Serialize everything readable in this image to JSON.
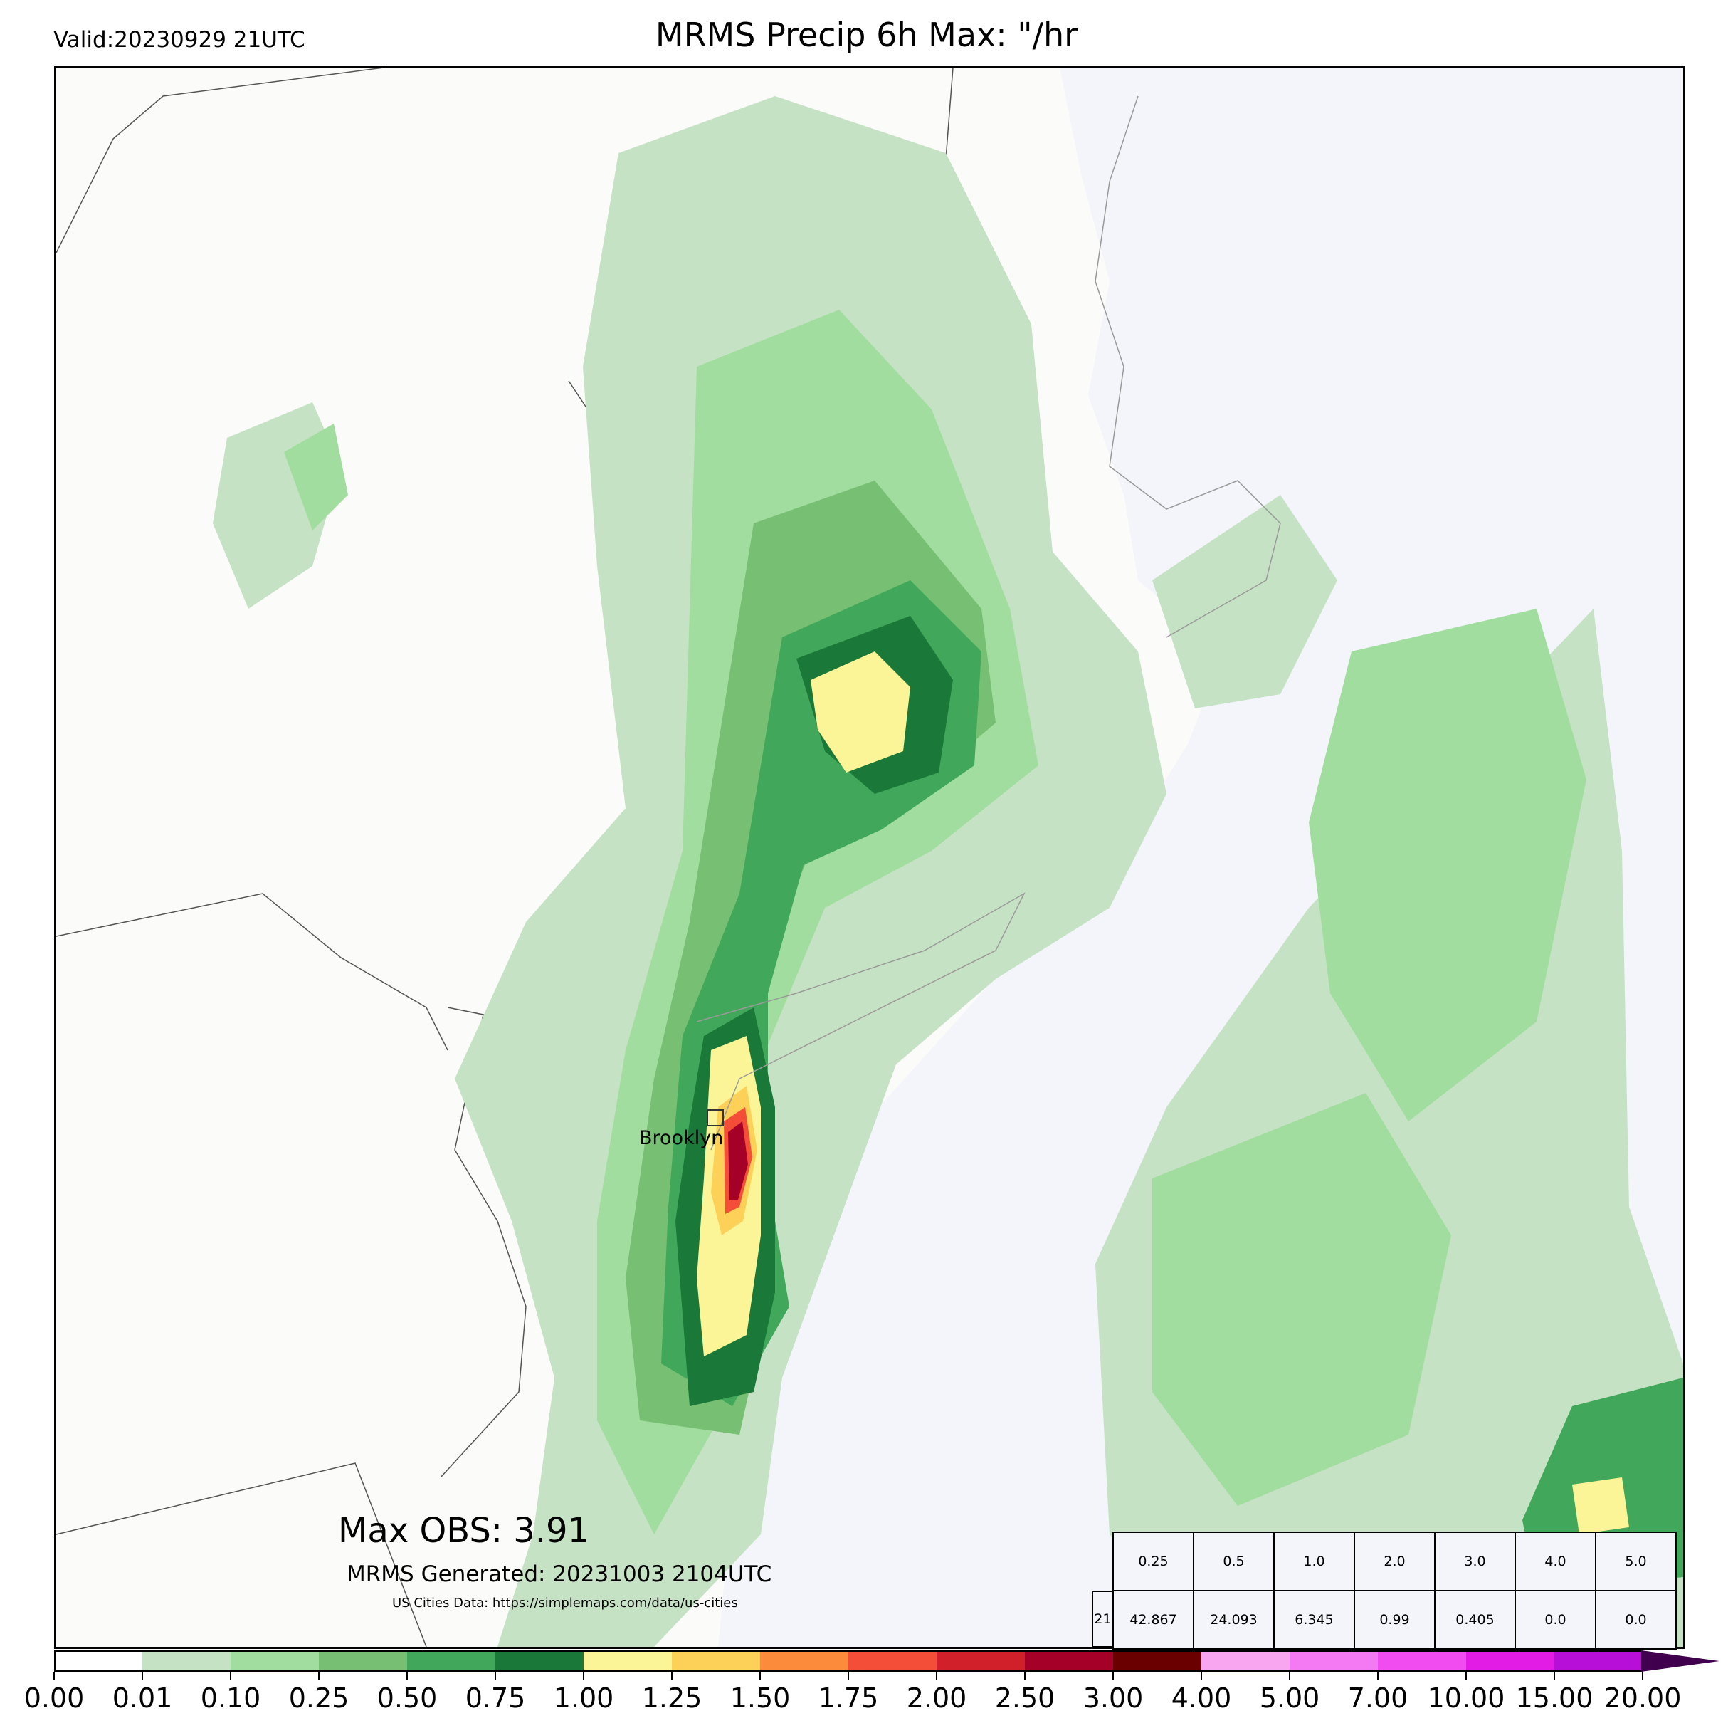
{
  "header": {
    "valid": "Valid:20230929 21UTC",
    "title": "MRMS Precip 6h Max: \"/hr"
  },
  "map": {
    "city_label": "Brooklyn",
    "max_obs": "Max OBS: 3.91",
    "generated": "MRMS Generated: 20231003 2104UTC",
    "credit": "US Cities Data: https://simplemaps.com/data/us-cities",
    "land_color": "#fbfbfa",
    "ocean_color": "#f3f5fa"
  },
  "stats_table": {
    "row_label": "21",
    "thresholds": [
      "0.25",
      "0.5",
      "1.0",
      "2.0",
      "3.0",
      "4.0",
      "5.0"
    ],
    "values": [
      "42.867",
      "24.093",
      "6.345",
      "0.99",
      "0.405",
      "0.0",
      "0.0"
    ]
  },
  "colorbar": {
    "labels": [
      "0.00",
      "0.01",
      "0.10",
      "0.25",
      "0.50",
      "0.75",
      "1.00",
      "1.25",
      "1.50",
      "1.75",
      "2.00",
      "2.50",
      "3.00",
      "4.00",
      "5.00",
      "7.00",
      "10.00",
      "15.00",
      "20.00"
    ],
    "colors": [
      "#ffffff",
      "#c6e2c4",
      "#a1dd9e",
      "#76bf73",
      "#41a75a",
      "#1a7838",
      "#fbf597",
      "#fdd057",
      "#fc8c3c",
      "#f44d38",
      "#d2202a",
      "#a50027",
      "#6b0000",
      "#f7a6ef",
      "#f47af3",
      "#f14cf0",
      "#e21be5",
      "#b70fd7"
    ],
    "extend_color": "#40004d"
  }
}
